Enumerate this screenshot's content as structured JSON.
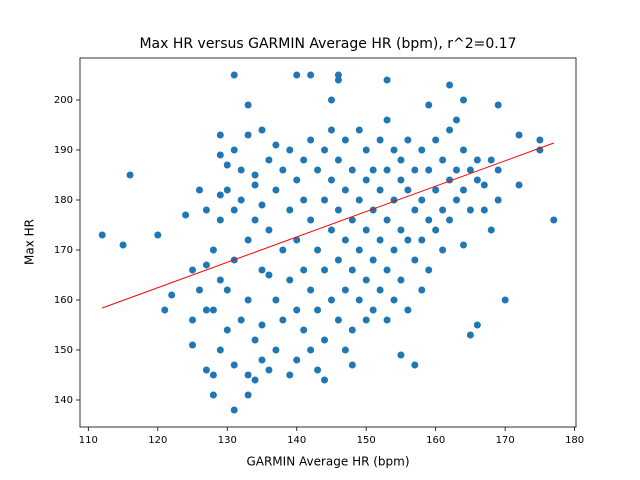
{
  "chart_data": {
    "type": "scatter",
    "title": "Max HR versus GARMIN Average HR (bpm), r^2=0.17",
    "x_label": "GARMIN Average HR (bpm)",
    "y_label": "Max HR",
    "xlim": [
      108.8,
      180.2
    ],
    "ylim": [
      134.6,
      208.4
    ],
    "xticks": [
      110,
      120,
      130,
      140,
      150,
      160,
      170,
      180
    ],
    "yticks": [
      140,
      150,
      160,
      170,
      180,
      190,
      200
    ],
    "color": "#1f77b4",
    "x": [
      112,
      115,
      116,
      120,
      121,
      122,
      124,
      125,
      125,
      125,
      126,
      127,
      127,
      128,
      128,
      129,
      129,
      130,
      131,
      131,
      133,
      133,
      134,
      135,
      136,
      137,
      140,
      142,
      144,
      145,
      146,
      146,
      148,
      150,
      153,
      155,
      157,
      159,
      162,
      163,
      164,
      165,
      166,
      167,
      169,
      170,
      172,
      172,
      175,
      175,
      177,
      168,
      164,
      128,
      128,
      129,
      129,
      130,
      130,
      130,
      131,
      131,
      131,
      132,
      132,
      132,
      133,
      133,
      133,
      134,
      134,
      134,
      135,
      135,
      135,
      136,
      136,
      136,
      137,
      137,
      137,
      138,
      138,
      138,
      139,
      139,
      139,
      140,
      140,
      140,
      140,
      141,
      141,
      141,
      141,
      142,
      142,
      142,
      142,
      143,
      143,
      143,
      144,
      144,
      144,
      144,
      145,
      145,
      145,
      145,
      146,
      146,
      146,
      146,
      147,
      147,
      147,
      147,
      147,
      148,
      148,
      148,
      148,
      149,
      149,
      149,
      149,
      150,
      150,
      150,
      150,
      151,
      151,
      151,
      151,
      152,
      152,
      152,
      152,
      153,
      153,
      153,
      153,
      153,
      154,
      154,
      154,
      154,
      155,
      155,
      155,
      155,
      156,
      156,
      156,
      156,
      157,
      157,
      157,
      158,
      158,
      158,
      158,
      159,
      159,
      159,
      160,
      160,
      160,
      161,
      161,
      161,
      162,
      162,
      162,
      163,
      163,
      164,
      164,
      165,
      165,
      166,
      166,
      167,
      168,
      169,
      169,
      131,
      133,
      134,
      135,
      139,
      143,
      129,
      127,
      126,
      127,
      129
    ],
    "y": [
      173,
      171,
      185,
      173,
      158,
      161,
      177,
      166,
      151,
      156,
      182,
      146,
      167,
      141,
      145,
      189,
      193,
      187,
      205,
      138,
      199,
      193,
      185,
      194,
      165,
      191,
      205,
      205,
      144,
      200,
      205,
      204,
      147,
      156,
      204,
      149,
      147,
      199,
      203,
      196,
      200,
      153,
      155,
      178,
      199,
      160,
      193,
      183,
      192,
      190,
      176,
      174,
      171,
      170,
      158,
      176,
      150,
      182,
      162,
      154,
      178,
      168,
      147,
      180,
      156,
      186,
      172,
      145,
      160,
      183,
      176,
      152,
      179,
      166,
      155,
      188,
      174,
      146,
      182,
      160,
      150,
      186,
      170,
      156,
      190,
      178,
      164,
      184,
      172,
      158,
      148,
      188,
      180,
      166,
      154,
      192,
      176,
      162,
      150,
      186,
      170,
      158,
      190,
      180,
      166,
      152,
      194,
      184,
      174,
      160,
      188,
      178,
      168,
      156,
      192,
      182,
      172,
      162,
      150,
      186,
      176,
      166,
      154,
      194,
      180,
      170,
      160,
      190,
      184,
      174,
      164,
      186,
      178,
      168,
      158,
      192,
      182,
      172,
      162,
      196,
      186,
      176,
      166,
      156,
      190,
      180,
      170,
      160,
      188,
      184,
      174,
      164,
      192,
      182,
      172,
      158,
      186,
      178,
      168,
      190,
      180,
      172,
      162,
      186,
      176,
      166,
      192,
      182,
      174,
      188,
      178,
      170,
      194,
      184,
      176,
      186,
      180,
      190,
      182,
      186,
      178,
      188,
      184,
      183,
      188,
      186,
      180,
      190,
      141,
      144,
      148,
      145,
      146,
      164,
      158,
      162,
      178,
      181
    ],
    "fit_line": {
      "x": [
        112,
        177
      ],
      "y": [
        158.4,
        191.4
      ],
      "color": "#ff0000"
    }
  }
}
